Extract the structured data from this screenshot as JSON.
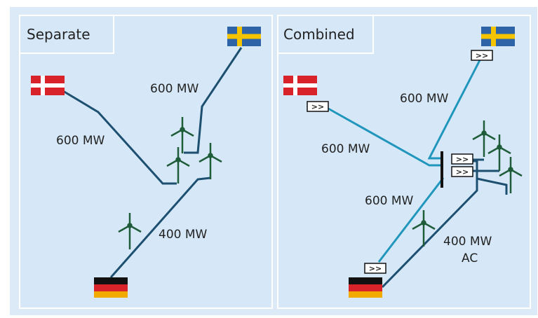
{
  "panels": [
    {
      "title": "Separate",
      "labels": [
        "600 MW",
        "600 MW",
        "400 MW"
      ]
    },
    {
      "title": "Combined",
      "labels": [
        "600 MW",
        "600 MW",
        "600 MW",
        "400 MW",
        "AC"
      ],
      "converters": [
        ">>",
        ">>",
        ">>",
        ">>",
        ">>"
      ]
    }
  ]
}
